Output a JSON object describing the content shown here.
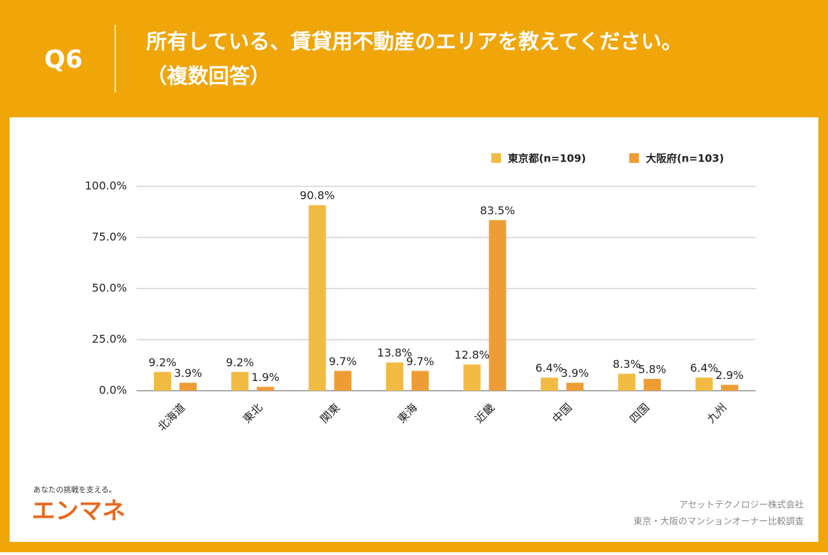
{
  "header": {
    "question": "Q6",
    "title": "所有している、賃貸用不動産のエリアを教えてください。",
    "subtitle": "（複数回答）"
  },
  "chart_data": {
    "type": "bar",
    "categories": [
      "北海道",
      "東北",
      "関東",
      "東海",
      "近畿",
      "中国",
      "四国",
      "九州"
    ],
    "series": [
      {
        "name": "東京都(n=109)",
        "color": "#f1bb43",
        "values": [
          9.2,
          9.2,
          90.8,
          13.8,
          12.8,
          6.4,
          8.3,
          6.4
        ],
        "value_labels": [
          "9.2%",
          "9.2%",
          "90.8%",
          "13.8%",
          "12.8%",
          "6.4%",
          "8.3%",
          "6.4%"
        ]
      },
      {
        "name": "大阪府(n=103)",
        "color": "#ee9d36",
        "values": [
          3.9,
          1.9,
          9.7,
          9.7,
          83.5,
          3.9,
          5.8,
          2.9
        ],
        "value_labels": [
          "3.9%",
          "1.9%",
          "9.7%",
          "9.7%",
          "83.5%",
          "3.9%",
          "5.8%",
          "2.9%"
        ]
      }
    ],
    "ylim": [
      0,
      100
    ],
    "yticks": [
      {
        "value": 0,
        "label": "0.0%"
      },
      {
        "value": 25,
        "label": "25.0%"
      },
      {
        "value": 50,
        "label": "50.0%"
      },
      {
        "value": 75,
        "label": "75.0%"
      },
      {
        "value": 100,
        "label": "100.0%"
      }
    ],
    "grid": true,
    "legend": "top-right"
  },
  "logo": {
    "tagline": "あなたの挑戦を支える。",
    "name": "エンマネ"
  },
  "footer": {
    "company": "アセットテクノロジー株式会社",
    "survey": "東京・大阪のマンションオーナー比較調査"
  }
}
